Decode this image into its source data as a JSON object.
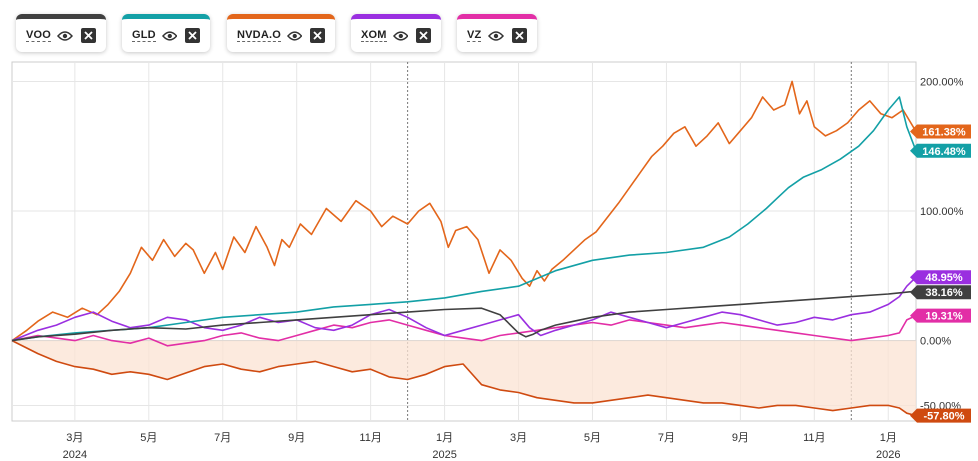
{
  "legend": [
    {
      "id": "voo",
      "label": "VOO",
      "color": "#404040"
    },
    {
      "id": "gld",
      "label": "GLD",
      "color": "#13a0a6"
    },
    {
      "id": "nvda",
      "label": "NVDA.O",
      "color": "#e3661b"
    },
    {
      "id": "xom",
      "label": "XOM",
      "color": "#9a2fe0"
    },
    {
      "id": "vz",
      "label": "VZ",
      "color": "#e22ea6"
    }
  ],
  "chart_data": {
    "type": "line",
    "ylim": [
      -62,
      215
    ],
    "y_ticks": [
      {
        "value": 200,
        "label": "200.00%"
      },
      {
        "value": 100,
        "label": "100.00%"
      },
      {
        "value": 0,
        "label": "0.00%"
      },
      {
        "value": -50,
        "label": "-50.00%"
      }
    ],
    "x_months": [
      {
        "label": "3月",
        "pos": 1.0
      },
      {
        "label": "5月",
        "pos": 3.0
      },
      {
        "label": "7月",
        "pos": 5.0
      },
      {
        "label": "9月",
        "pos": 7.0
      },
      {
        "label": "11月",
        "pos": 9.0
      },
      {
        "label": "1月",
        "pos": 11.0
      },
      {
        "label": "3月",
        "pos": 13.0
      },
      {
        "label": "5月",
        "pos": 15.0
      },
      {
        "label": "7月",
        "pos": 17.0
      },
      {
        "label": "9月",
        "pos": 19.0
      },
      {
        "label": "11月",
        "pos": 21.0
      },
      {
        "label": "1月",
        "pos": 23.0
      }
    ],
    "x_years": [
      {
        "label": "2024",
        "pos": 1.0
      },
      {
        "label": "2025",
        "pos": 11.0
      },
      {
        "label": "2026",
        "pos": 23.0
      }
    ],
    "year_dividers": [
      10.0,
      22.0
    ],
    "x_range": [
      -0.7,
      23.75
    ],
    "series": [
      {
        "name": "NVDA.O",
        "color": "#e3661b",
        "end_label": "161.38%",
        "x": [
          -0.7,
          -0.3,
          0.0,
          0.4,
          0.8,
          1.2,
          1.6,
          1.9,
          2.2,
          2.5,
          2.8,
          3.1,
          3.4,
          3.7,
          4.0,
          4.2,
          4.5,
          4.8,
          5.0,
          5.3,
          5.6,
          5.9,
          6.2,
          6.4,
          6.6,
          6.8,
          7.1,
          7.4,
          7.8,
          8.2,
          8.6,
          9.0,
          9.3,
          9.6,
          10.0,
          10.3,
          10.6,
          10.9,
          11.1,
          11.3,
          11.6,
          11.9,
          12.2,
          12.5,
          12.8,
          13.1,
          13.3,
          13.5,
          13.7,
          13.9,
          14.2,
          14.5,
          14.8,
          15.1,
          15.4,
          15.7,
          16.0,
          16.3,
          16.6,
          16.9,
          17.2,
          17.5,
          17.8,
          18.1,
          18.4,
          18.7,
          19.0,
          19.3,
          19.6,
          19.9,
          20.2,
          20.4,
          20.6,
          20.8,
          21.0,
          21.3,
          21.6,
          21.9,
          22.2,
          22.5,
          22.8,
          23.1,
          23.4,
          23.75
        ],
        "y": [
          0,
          8,
          15,
          22,
          18,
          25,
          20,
          28,
          38,
          52,
          72,
          62,
          78,
          65,
          75,
          70,
          52,
          68,
          55,
          80,
          68,
          88,
          72,
          58,
          78,
          72,
          90,
          82,
          102,
          92,
          108,
          100,
          88,
          96,
          90,
          100,
          106,
          92,
          72,
          85,
          88,
          78,
          52,
          70,
          62,
          48,
          42,
          54,
          46,
          55,
          62,
          70,
          78,
          84,
          95,
          106,
          118,
          130,
          142,
          150,
          160,
          165,
          150,
          158,
          168,
          152,
          162,
          172,
          188,
          178,
          182,
          200,
          175,
          185,
          165,
          158,
          162,
          168,
          178,
          185,
          175,
          172,
          178,
          161.38
        ]
      },
      {
        "name": "GLD",
        "color": "#13a0a6",
        "end_label": "146.48%",
        "x": [
          -0.7,
          0.0,
          1.0,
          2.0,
          3.0,
          4.0,
          5.0,
          6.0,
          7.0,
          8.0,
          9.0,
          10.0,
          11.0,
          12.0,
          13.0,
          14.0,
          15.0,
          16.0,
          17.0,
          18.0,
          18.7,
          19.2,
          19.7,
          20.0,
          20.3,
          20.7,
          21.2,
          21.7,
          22.2,
          22.6,
          23.0,
          23.3,
          23.5,
          23.75
        ],
        "y": [
          0,
          3,
          6,
          8,
          10,
          14,
          18,
          20,
          22,
          26,
          28,
          30,
          33,
          38,
          42,
          54,
          62,
          66,
          68,
          72,
          80,
          90,
          102,
          110,
          118,
          126,
          132,
          140,
          150,
          162,
          178,
          188,
          165,
          146.48
        ]
      },
      {
        "name": "VOO",
        "color": "#404040",
        "end_label": "38.16%",
        "x": [
          -0.7,
          0.0,
          1.0,
          2.0,
          3.0,
          4.0,
          5.0,
          6.0,
          7.0,
          8.0,
          9.0,
          10.0,
          11.0,
          12.0,
          12.5,
          13.0,
          13.2,
          13.4,
          13.6,
          14.0,
          14.5,
          15.0,
          16.0,
          17.0,
          18.0,
          19.0,
          20.0,
          21.0,
          22.0,
          23.0,
          23.75
        ],
        "y": [
          0,
          3,
          5,
          8,
          10,
          9,
          12,
          14,
          16,
          18,
          20,
          22,
          24,
          25,
          20,
          6,
          3,
          5,
          8,
          12,
          15,
          18,
          22,
          24,
          26,
          28,
          30,
          32,
          34,
          36,
          38.16
        ]
      },
      {
        "name": "XOM",
        "color": "#9a2fe0",
        "end_label": "48.95%",
        "x": [
          -0.7,
          0.0,
          0.5,
          1.0,
          1.5,
          2.0,
          2.5,
          3.0,
          3.5,
          4.0,
          4.5,
          5.0,
          5.5,
          6.0,
          6.5,
          7.0,
          7.5,
          8.0,
          8.5,
          9.0,
          9.5,
          10.0,
          10.5,
          11.0,
          11.5,
          12.0,
          12.5,
          13.0,
          13.3,
          13.6,
          14.0,
          14.5,
          15.0,
          15.5,
          16.0,
          16.5,
          17.0,
          17.5,
          18.0,
          18.5,
          19.0,
          19.5,
          20.0,
          20.5,
          21.0,
          21.5,
          22.0,
          22.5,
          23.0,
          23.3,
          23.5,
          23.75
        ],
        "y": [
          0,
          8,
          12,
          18,
          22,
          15,
          10,
          12,
          18,
          16,
          10,
          8,
          12,
          18,
          14,
          16,
          10,
          8,
          12,
          20,
          24,
          18,
          10,
          4,
          8,
          12,
          16,
          20,
          10,
          4,
          8,
          12,
          16,
          22,
          18,
          14,
          10,
          14,
          18,
          22,
          20,
          16,
          12,
          14,
          18,
          16,
          20,
          22,
          28,
          34,
          42,
          48.95
        ]
      },
      {
        "name": "VZ",
        "color": "#e22ea6",
        "end_label": "19.31%",
        "x": [
          -0.7,
          0.0,
          0.5,
          1.0,
          1.5,
          2.0,
          2.5,
          3.0,
          3.5,
          4.0,
          4.5,
          5.0,
          5.5,
          6.0,
          6.5,
          7.0,
          7.5,
          8.0,
          8.5,
          9.0,
          9.5,
          10.0,
          10.5,
          11.0,
          11.5,
          12.0,
          12.5,
          13.0,
          13.5,
          14.0,
          14.5,
          15.0,
          15.5,
          16.0,
          16.5,
          17.0,
          17.5,
          18.0,
          18.5,
          19.0,
          19.5,
          20.0,
          20.5,
          21.0,
          21.5,
          22.0,
          22.5,
          23.0,
          23.3,
          23.5,
          23.75
        ],
        "y": [
          0,
          4,
          2,
          0,
          4,
          0,
          -2,
          2,
          -4,
          -2,
          0,
          4,
          6,
          2,
          0,
          4,
          8,
          12,
          10,
          14,
          16,
          12,
          8,
          4,
          2,
          0,
          4,
          6,
          8,
          10,
          12,
          14,
          12,
          16,
          14,
          12,
          10,
          12,
          14,
          12,
          10,
          8,
          6,
          4,
          2,
          0,
          2,
          4,
          6,
          16,
          19.31
        ]
      },
      {
        "name": "-57.80%",
        "color": "#cf4a10",
        "end_label": "-57.80%",
        "fill": true,
        "x": [
          -0.7,
          0.0,
          0.5,
          1.0,
          1.5,
          2.0,
          2.5,
          3.0,
          3.5,
          4.0,
          4.5,
          5.0,
          5.5,
          6.0,
          6.5,
          7.0,
          7.5,
          8.0,
          8.5,
          9.0,
          9.5,
          10.0,
          10.5,
          11.0,
          11.5,
          12.0,
          12.5,
          13.0,
          13.5,
          14.0,
          14.5,
          15.0,
          15.5,
          16.0,
          16.5,
          17.0,
          17.5,
          18.0,
          18.5,
          19.0,
          19.5,
          20.0,
          20.5,
          21.0,
          21.5,
          22.0,
          22.5,
          23.0,
          23.3,
          23.5,
          23.75
        ],
        "y": [
          0,
          -10,
          -16,
          -20,
          -22,
          -26,
          -24,
          -26,
          -30,
          -25,
          -20,
          -18,
          -22,
          -24,
          -20,
          -18,
          -16,
          -20,
          -24,
          -22,
          -28,
          -30,
          -26,
          -20,
          -18,
          -34,
          -38,
          -40,
          -44,
          -46,
          -48,
          -48,
          -46,
          -44,
          -42,
          -44,
          -46,
          -48,
          -48,
          -50,
          -52,
          -50,
          -50,
          -52,
          -54,
          -52,
          -50,
          -50,
          -52,
          -56,
          -57.8
        ]
      }
    ]
  }
}
